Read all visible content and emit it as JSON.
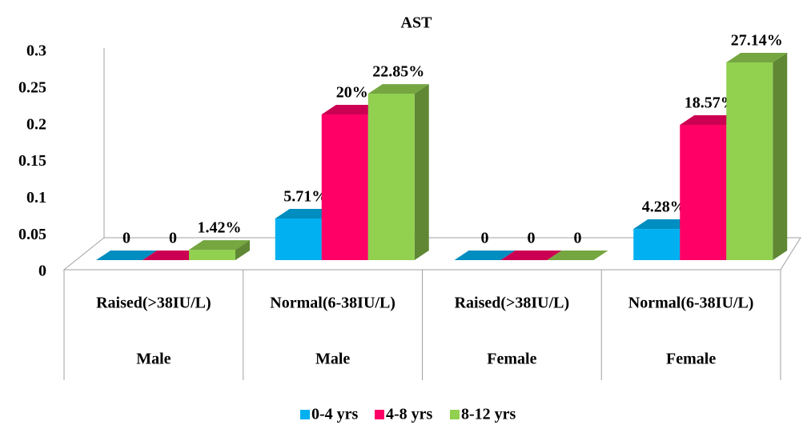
{
  "chart_data": {
    "type": "bar3d",
    "title": "AST",
    "categories": [
      "Raised(>38IU/L)",
      "Normal(6-38IU/L)",
      "Raised(>38IU/L)",
      "Normal(6-38IU/L)"
    ],
    "groups": [
      "Male",
      "Male",
      "Female",
      "Female"
    ],
    "series": [
      {
        "name": "0-4 yrs",
        "color": "#00b0f0",
        "values": [
          0,
          0.0571,
          0,
          0.0428
        ],
        "value_labels": [
          "0",
          "5.71%",
          "0",
          "4.28%"
        ]
      },
      {
        "name": "4-8 yrs",
        "color": "#ff0066",
        "values": [
          0,
          0.2,
          0,
          0.1857
        ],
        "value_labels": [
          "0",
          "20%",
          "0",
          "18.57%"
        ]
      },
      {
        "name": "8-12 yrs",
        "color": "#92d050",
        "values": [
          0.0142,
          0.2285,
          0,
          0.2714
        ],
        "value_labels": [
          "1.42%",
          "22.85%",
          "0",
          "27.14%"
        ]
      }
    ],
    "ylim": [
      0,
      0.3
    ],
    "yticks": [
      0,
      0.05,
      0.1,
      0.15,
      0.2,
      0.25,
      0.3
    ],
    "legend": "bottom"
  }
}
